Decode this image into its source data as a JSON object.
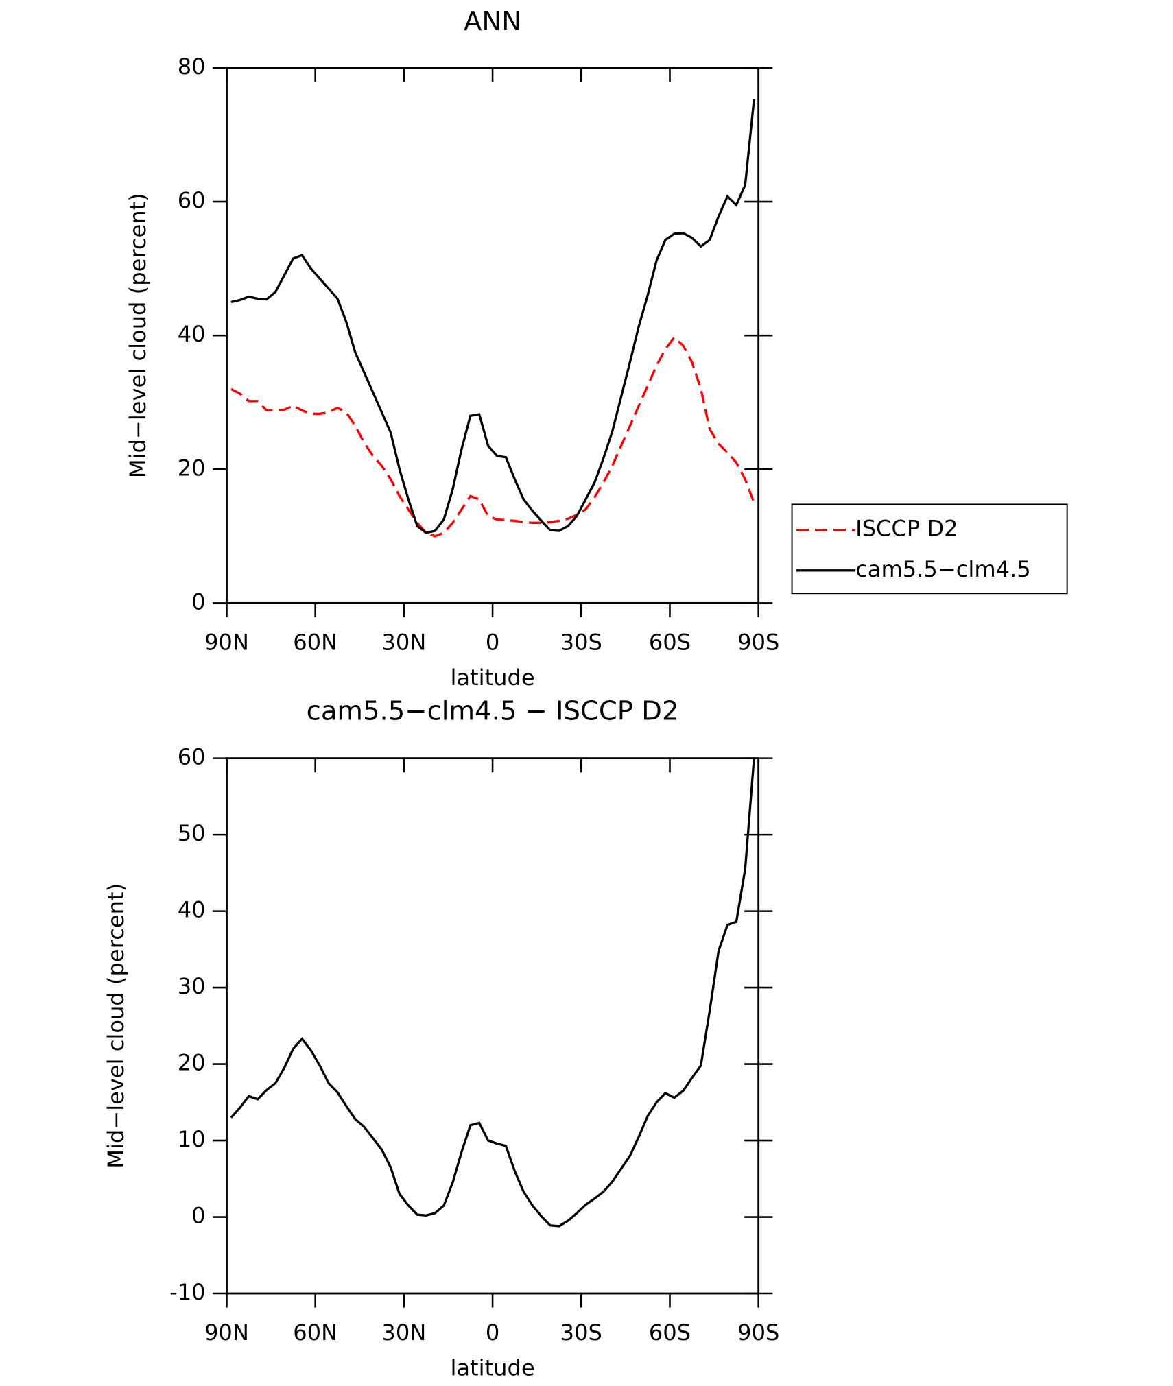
{
  "chart_data": [
    {
      "type": "line",
      "title": "ANN",
      "x_label": "latitude",
      "y_label": "Mid−level cloud (percent)",
      "x": [
        88.5,
        85.5,
        82.5,
        79.5,
        76.5,
        73.5,
        70.5,
        67.5,
        64.5,
        61.5,
        58.5,
        55.5,
        52.5,
        49.5,
        46.5,
        43.5,
        40.5,
        37.5,
        34.5,
        31.5,
        28.5,
        25.5,
        22.5,
        19.5,
        16.5,
        13.5,
        10.5,
        7.5,
        4.5,
        1.5,
        -1.5,
        -4.5,
        -7.5,
        -10.5,
        -13.5,
        -16.5,
        -19.5,
        -22.5,
        -25.5,
        -28.5,
        -31.5,
        -34.5,
        -37.5,
        -40.5,
        -43.5,
        -46.5,
        -49.5,
        -52.5,
        -55.5,
        -58.5,
        -61.5,
        -64.5,
        -67.5,
        -70.5,
        -73.5,
        -76.5,
        -79.5,
        -82.5,
        -85.5,
        -88.5
      ],
      "xlim": [
        90,
        -90
      ],
      "xticks": [
        {
          "value": 90,
          "label": "90N"
        },
        {
          "value": 60,
          "label": "60N"
        },
        {
          "value": 30,
          "label": "30N"
        },
        0,
        {
          "value": -30,
          "label": "30S"
        },
        {
          "value": -60,
          "label": "60S"
        },
        {
          "value": -90,
          "label": "90S"
        }
      ],
      "ylim": [
        0,
        80
      ],
      "yticks": [
        0,
        20,
        40,
        60,
        80
      ],
      "legend": "right",
      "series": [
        {
          "name": "ISCCP D2",
          "color": "#ff0000",
          "line_style": "dashed",
          "values": [
            32,
            31.3,
            30.2,
            30.2,
            28.8,
            28.8,
            28.9,
            29.5,
            28.8,
            28.3,
            28.3,
            28.5,
            29.2,
            28.5,
            26.5,
            24,
            22,
            20.5,
            18.5,
            16,
            14,
            12,
            10.5,
            10,
            10.5,
            12,
            14,
            16,
            15.5,
            13,
            12.5,
            12.4,
            12.3,
            12.1,
            12,
            12,
            12.1,
            12.3,
            12.6,
            13.2,
            14,
            15.8,
            18,
            20.5,
            23.5,
            26.5,
            29.5,
            32.5,
            35.5,
            38,
            39.7,
            38.5,
            36,
            32,
            26,
            23.8,
            22.5,
            21,
            18.5,
            15
          ]
        },
        {
          "name": "cam5.5−clm4.5",
          "color": "#000000",
          "line_style": "solid",
          "values": [
            45,
            45.3,
            45.8,
            45.5,
            45.4,
            46.5,
            49,
            51.5,
            52,
            50,
            48.5,
            47,
            45.5,
            42,
            37.5,
            34.5,
            31.5,
            28.5,
            25.5,
            20,
            15.5,
            11.5,
            10.5,
            10.8,
            12.5,
            17,
            23,
            28,
            28.2,
            23.5,
            22,
            21.8,
            18.5,
            15.5,
            13.8,
            12.3,
            10.9,
            10.8,
            11.5,
            13,
            15.5,
            18,
            21.6,
            25.6,
            30.8,
            36,
            41.4,
            46,
            51.2,
            54.3,
            55.2,
            55.3,
            54.6,
            53.3,
            54.3,
            57.8,
            60.8,
            59.5,
            62.5,
            75.3
          ]
        }
      ]
    },
    {
      "type": "line",
      "title": "cam5.5−clm4.5 − ISCCP D2",
      "x_label": "latitude",
      "y_label": "Mid−level cloud (percent)",
      "x": [
        88.5,
        85.5,
        82.5,
        79.5,
        76.5,
        73.5,
        70.5,
        67.5,
        64.5,
        61.5,
        58.5,
        55.5,
        52.5,
        49.5,
        46.5,
        43.5,
        40.5,
        37.5,
        34.5,
        31.5,
        28.5,
        25.5,
        22.5,
        19.5,
        16.5,
        13.5,
        10.5,
        7.5,
        4.5,
        1.5,
        -1.5,
        -4.5,
        -7.5,
        -10.5,
        -13.5,
        -16.5,
        -19.5,
        -22.5,
        -25.5,
        -28.5,
        -31.5,
        -34.5,
        -37.5,
        -40.5,
        -43.5,
        -46.5,
        -49.5,
        -52.5,
        -55.5,
        -58.5,
        -61.5,
        -64.5,
        -67.5,
        -70.5,
        -73.5,
        -76.5,
        -79.5,
        -82.5,
        -85.5,
        -88.5
      ],
      "xlim": [
        90,
        -90
      ],
      "xticks": [
        {
          "value": 90,
          "label": "90N"
        },
        {
          "value": 60,
          "label": "60N"
        },
        {
          "value": 30,
          "label": "30N"
        },
        0,
        {
          "value": -30,
          "label": "30S"
        },
        {
          "value": -60,
          "label": "60S"
        },
        {
          "value": -90,
          "label": "90S"
        }
      ],
      "ylim": [
        -10,
        60
      ],
      "yticks": [
        -10,
        0,
        10,
        20,
        30,
        40,
        50,
        60
      ],
      "color": "#000000",
      "values": [
        13,
        14.3,
        15.8,
        15.4,
        16.6,
        17.5,
        19.5,
        22,
        23.3,
        21.8,
        19.8,
        17.5,
        16.3,
        14.5,
        12.8,
        11.8,
        10.3,
        8.8,
        6.5,
        3,
        1.5,
        0.3,
        0.2,
        0.5,
        1.5,
        4.5,
        8.5,
        12,
        12.3,
        10,
        9.6,
        9.3,
        6,
        3.3,
        1.5,
        0.1,
        -1.1,
        -1.2,
        -0.5,
        0.5,
        1.6,
        2.4,
        3.3,
        4.6,
        6.3,
        8,
        10.5,
        13.2,
        15,
        16.2,
        15.6,
        16.5,
        18.2,
        19.8,
        27,
        34.8,
        38.2,
        38.6,
        45.5,
        60
      ]
    }
  ]
}
